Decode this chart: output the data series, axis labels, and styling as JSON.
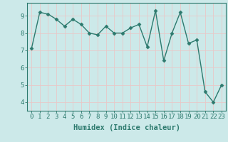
{
  "x": [
    0,
    1,
    2,
    3,
    4,
    5,
    6,
    7,
    8,
    9,
    10,
    11,
    12,
    13,
    14,
    15,
    16,
    17,
    18,
    19,
    20,
    21,
    22,
    23
  ],
  "y": [
    7.1,
    9.2,
    9.1,
    8.8,
    8.4,
    8.8,
    8.5,
    8.0,
    7.9,
    8.4,
    8.0,
    8.0,
    8.3,
    8.5,
    7.2,
    9.3,
    6.4,
    8.0,
    9.2,
    7.4,
    7.6,
    4.6,
    4.0,
    5.0
  ],
  "line_color": "#2d7a6e",
  "marker": "D",
  "marker_size": 2.5,
  "linewidth": 1.0,
  "xlabel": "Humidex (Indice chaleur)",
  "xlim": [
    -0.5,
    23.5
  ],
  "ylim": [
    3.5,
    9.75
  ],
  "yticks": [
    4,
    5,
    6,
    7,
    8,
    9
  ],
  "xticks": [
    0,
    1,
    2,
    3,
    4,
    5,
    6,
    7,
    8,
    9,
    10,
    11,
    12,
    13,
    14,
    15,
    16,
    17,
    18,
    19,
    20,
    21,
    22,
    23
  ],
  "background_color": "#cce9e9",
  "grid_color": "#e8c8c8",
  "axis_color": "#2d7a6e",
  "tick_color": "#2d7a6e",
  "label_color": "#2d7a6e",
  "xlabel_fontsize": 7.5,
  "tick_fontsize": 6.5
}
